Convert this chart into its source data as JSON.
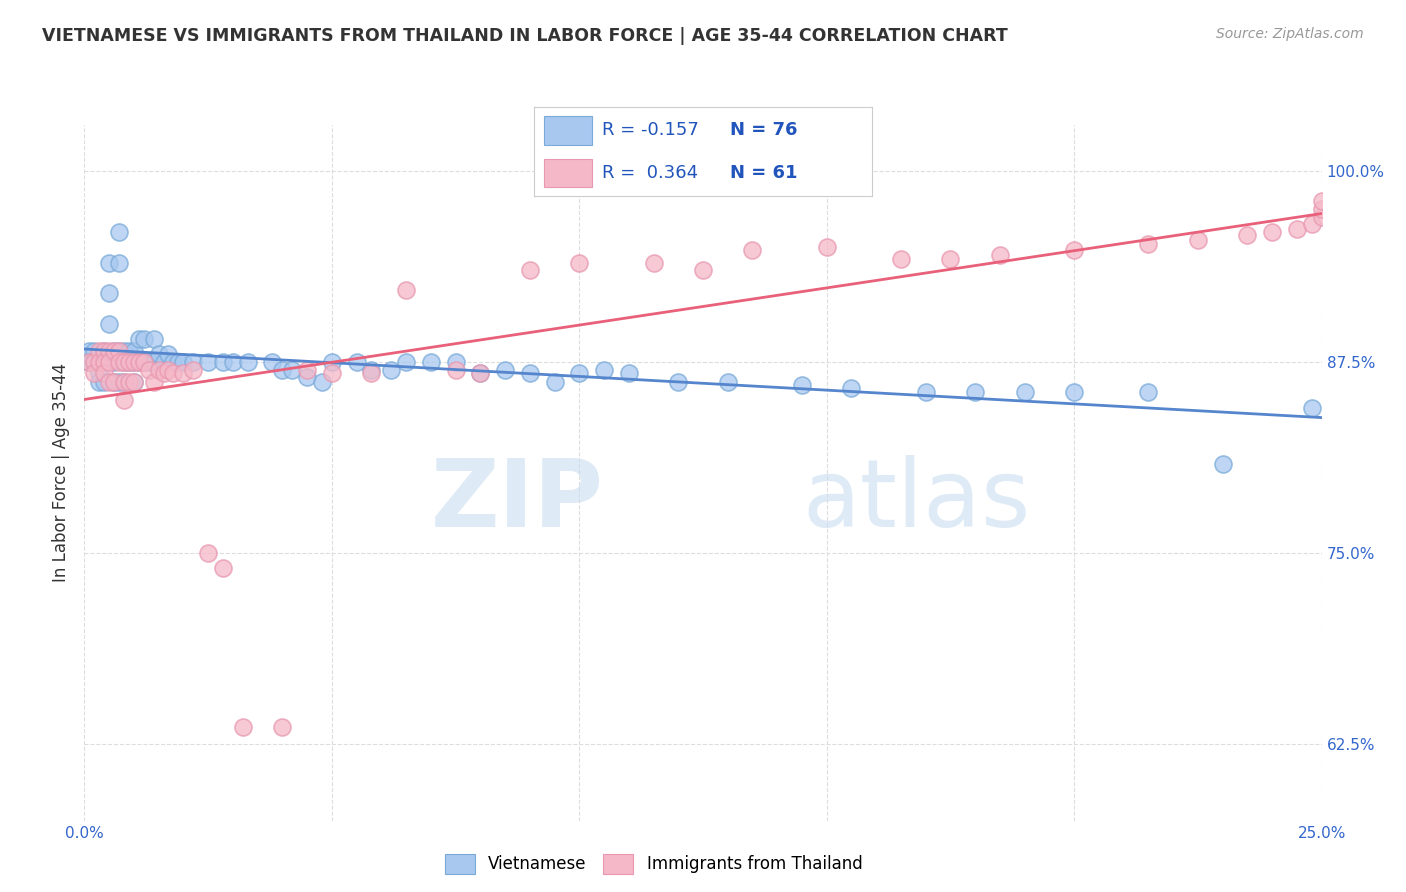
{
  "title": "VIETNAMESE VS IMMIGRANTS FROM THAILAND IN LABOR FORCE | AGE 35-44 CORRELATION CHART",
  "source": "Source: ZipAtlas.com",
  "ylabel": "In Labor Force | Age 35-44",
  "xlim": [
    0.0,
    0.25
  ],
  "ylim": [
    0.575,
    1.03
  ],
  "xticks": [
    0.0,
    0.05,
    0.1,
    0.15,
    0.2,
    0.25
  ],
  "yticks_right": [
    0.625,
    0.75,
    0.875,
    1.0
  ],
  "yticklabels_right": [
    "62.5%",
    "75.0%",
    "87.5%",
    "100.0%"
  ],
  "blue_R": -0.157,
  "blue_N": 76,
  "pink_R": 0.364,
  "pink_N": 61,
  "blue_color": "#A8C8F0",
  "pink_color": "#F5B8C8",
  "blue_edge_color": "#7AAAD8",
  "pink_edge_color": "#E898B0",
  "blue_line_color": "#5585CC",
  "pink_line_color": "#E8607A",
  "blue_label": "Vietnamese",
  "pink_label": "Immigrants from Thailand",
  "legend_R_color": "#2255BB",
  "blue_x": [
    0.001,
    0.001,
    0.002,
    0.002,
    0.003,
    0.003,
    0.003,
    0.004,
    0.004,
    0.004,
    0.005,
    0.005,
    0.005,
    0.006,
    0.006,
    0.006,
    0.007,
    0.007,
    0.007,
    0.007,
    0.008,
    0.008,
    0.008,
    0.009,
    0.009,
    0.01,
    0.01,
    0.01,
    0.011,
    0.011,
    0.012,
    0.012,
    0.013,
    0.014,
    0.014,
    0.015,
    0.016,
    0.017,
    0.018,
    0.019,
    0.02,
    0.022,
    0.025,
    0.028,
    0.03,
    0.033,
    0.038,
    0.04,
    0.042,
    0.045,
    0.048,
    0.05,
    0.055,
    0.058,
    0.062,
    0.065,
    0.07,
    0.075,
    0.08,
    0.085,
    0.09,
    0.095,
    0.1,
    0.105,
    0.11,
    0.12,
    0.13,
    0.145,
    0.155,
    0.17,
    0.18,
    0.19,
    0.2,
    0.215,
    0.23,
    0.248
  ],
  "blue_y": [
    0.882,
    0.875,
    0.882,
    0.875,
    0.875,
    0.868,
    0.862,
    0.882,
    0.875,
    0.862,
    0.94,
    0.92,
    0.9,
    0.882,
    0.875,
    0.862,
    0.96,
    0.94,
    0.882,
    0.862,
    0.882,
    0.875,
    0.862,
    0.882,
    0.875,
    0.882,
    0.875,
    0.862,
    0.89,
    0.875,
    0.89,
    0.875,
    0.875,
    0.89,
    0.875,
    0.88,
    0.875,
    0.88,
    0.875,
    0.875,
    0.875,
    0.875,
    0.875,
    0.875,
    0.875,
    0.875,
    0.875,
    0.87,
    0.87,
    0.865,
    0.862,
    0.875,
    0.875,
    0.87,
    0.87,
    0.875,
    0.875,
    0.875,
    0.868,
    0.87,
    0.868,
    0.862,
    0.868,
    0.87,
    0.868,
    0.862,
    0.862,
    0.86,
    0.858,
    0.855,
    0.855,
    0.855,
    0.855,
    0.855,
    0.808,
    0.845
  ],
  "pink_x": [
    0.001,
    0.002,
    0.002,
    0.003,
    0.003,
    0.004,
    0.004,
    0.004,
    0.005,
    0.005,
    0.005,
    0.006,
    0.006,
    0.007,
    0.007,
    0.008,
    0.008,
    0.008,
    0.009,
    0.009,
    0.01,
    0.01,
    0.011,
    0.012,
    0.013,
    0.014,
    0.015,
    0.016,
    0.017,
    0.018,
    0.02,
    0.022,
    0.025,
    0.028,
    0.032,
    0.04,
    0.045,
    0.05,
    0.058,
    0.065,
    0.075,
    0.08,
    0.09,
    0.1,
    0.115,
    0.125,
    0.135,
    0.15,
    0.165,
    0.175,
    0.185,
    0.2,
    0.215,
    0.225,
    0.235,
    0.24,
    0.245,
    0.248,
    0.25,
    0.25,
    0.25
  ],
  "pink_y": [
    0.875,
    0.875,
    0.868,
    0.882,
    0.875,
    0.882,
    0.875,
    0.868,
    0.882,
    0.875,
    0.862,
    0.882,
    0.862,
    0.882,
    0.875,
    0.875,
    0.862,
    0.85,
    0.875,
    0.862,
    0.875,
    0.862,
    0.875,
    0.875,
    0.87,
    0.862,
    0.87,
    0.868,
    0.87,
    0.868,
    0.868,
    0.87,
    0.75,
    0.74,
    0.636,
    0.636,
    0.87,
    0.868,
    0.868,
    0.922,
    0.87,
    0.868,
    0.935,
    0.94,
    0.94,
    0.935,
    0.948,
    0.95,
    0.942,
    0.942,
    0.945,
    0.948,
    0.952,
    0.955,
    0.958,
    0.96,
    0.962,
    0.965,
    0.97,
    0.975,
    0.98
  ],
  "watermark_zip": "ZIP",
  "watermark_atlas": "atlas",
  "background_color": "#FFFFFF",
  "grid_color": "#DDDDDD"
}
